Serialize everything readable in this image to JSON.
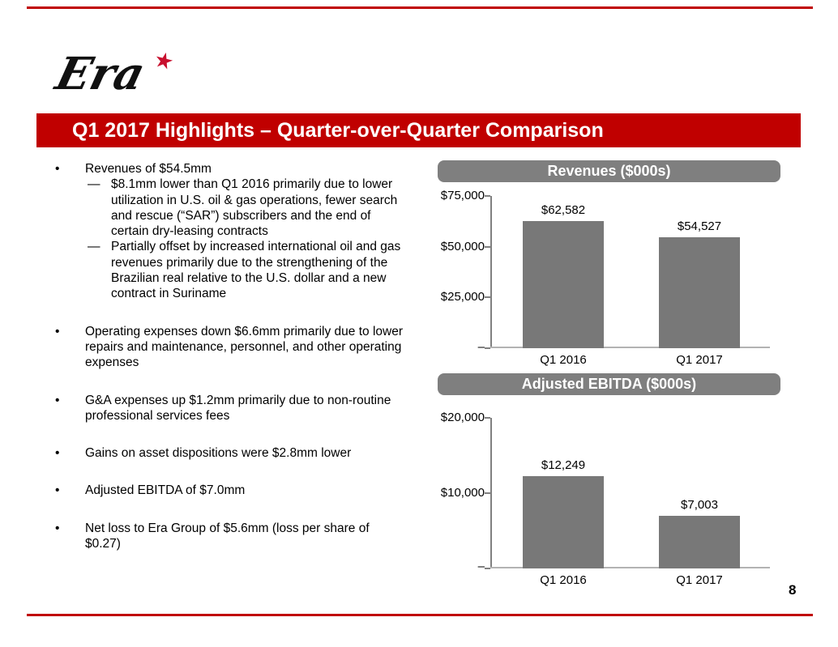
{
  "slide": {
    "logo_text": "Era",
    "star_icon": "★",
    "title": "Q1 2017 Highlights – Quarter-over-Quarter Comparison",
    "page_number": "8",
    "bullet_marker": "•",
    "sub_marker": "—",
    "accent_red": "#C00000",
    "star_red": "#C8102E",
    "header_gray": "#7F7F7F",
    "bar_gray": "#787878"
  },
  "bullets": [
    {
      "text": "Revenues of $54.5mm",
      "subs": [
        "$8.1mm lower than Q1 2016 primarily due to lower utilization in U.S. oil & gas operations, fewer search and rescue (“SAR”) subscribers and the end of certain dry-leasing contracts",
        "Partially offset by increased international oil and gas revenues primarily due to the strengthening of the Brazilian real relative to the U.S. dollar and a new contract in Suriname"
      ]
    },
    {
      "text": "Operating expenses down $6.6mm primarily due to lower repairs and maintenance, personnel, and other operating expenses",
      "subs": []
    },
    {
      "text": "G&A expenses up $1.2mm primarily due to non-routine professional services fees",
      "subs": []
    },
    {
      "text": "Gains on asset dispositions were $2.8mm lower",
      "subs": []
    },
    {
      "text": "Adjusted EBITDA of $7.0mm",
      "subs": []
    },
    {
      "text": "Net loss to Era Group of $5.6mm (loss per share of $0.27)",
      "subs": []
    }
  ],
  "chart_data": [
    {
      "type": "bar",
      "title": "Revenues ($000s)",
      "categories": [
        "Q1 2016",
        "Q1 2017"
      ],
      "values": [
        62582,
        54527
      ],
      "value_labels": [
        "$62,582",
        "$54,527"
      ],
      "ytick_labels": [
        "$75,000",
        "$50,000",
        "$25,000",
        "–"
      ],
      "ylim": [
        0,
        75000
      ],
      "grid": false,
      "legend": "none",
      "bar_color": "#787878"
    },
    {
      "type": "bar",
      "title": "Adjusted EBITDA ($000s)",
      "categories": [
        "Q1 2016",
        "Q1 2017"
      ],
      "values": [
        12249,
        7003
      ],
      "value_labels": [
        "$12,249",
        "$7,003"
      ],
      "ytick_labels": [
        "$20,000",
        "$10,000",
        "–"
      ],
      "ylim": [
        0,
        20000
      ],
      "grid": false,
      "legend": "none",
      "bar_color": "#787878"
    }
  ]
}
